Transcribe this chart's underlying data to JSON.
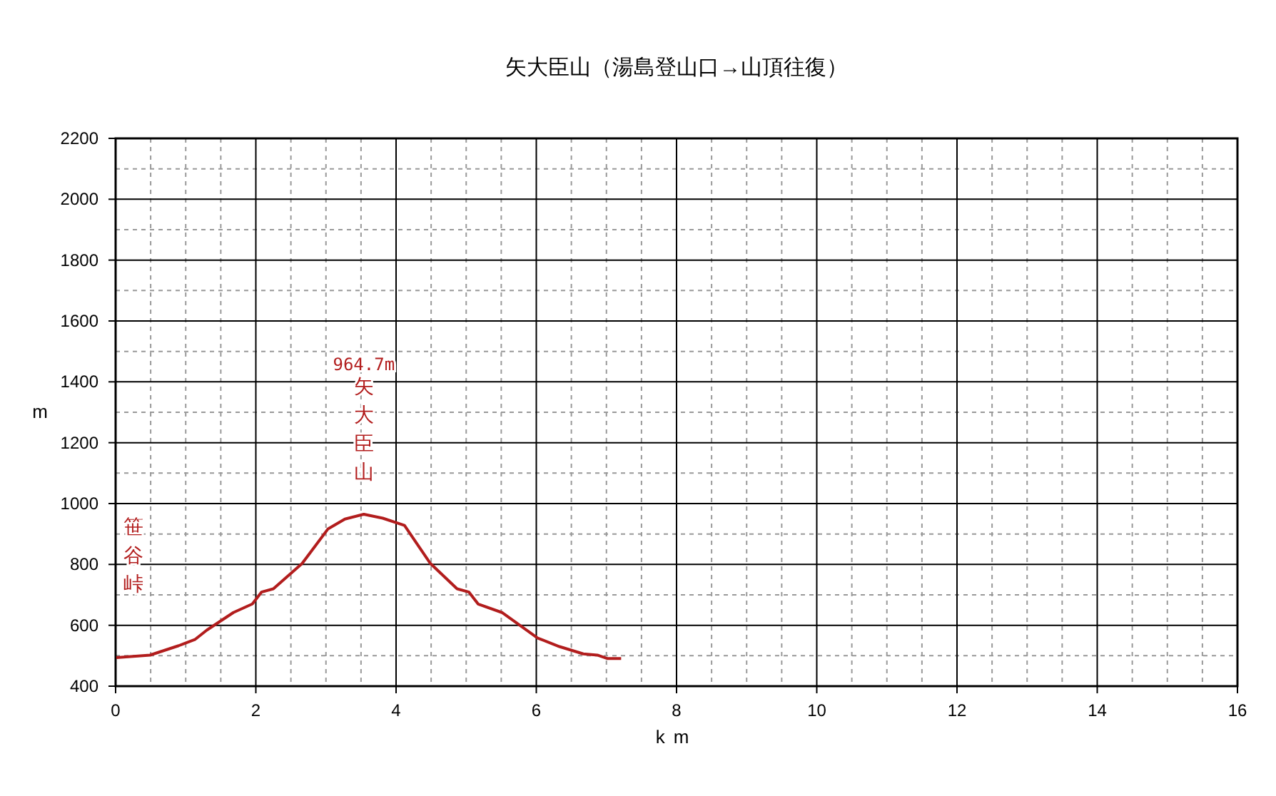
{
  "chart_data": {
    "type": "line",
    "title": "矢大臣山（湯島登山口→山頂往復）",
    "xlabel": "km",
    "ylabel": "m",
    "xlim": [
      0,
      16
    ],
    "xticks": [
      0,
      2,
      4,
      6,
      8,
      10,
      12,
      14,
      16
    ],
    "ylim": [
      400,
      2200
    ],
    "yticks": [
      400,
      600,
      800,
      1000,
      1200,
      1400,
      1600,
      1800,
      2000,
      2200
    ],
    "grid": true,
    "marker": "none",
    "line_style": "solid",
    "series": [
      {
        "color": "#b21d1d",
        "x": [
          0.01,
          0.49,
          0.9,
          1.13,
          1.3,
          1.68,
          1.95,
          2.08,
          2.25,
          2.66,
          3.03,
          3.27,
          3.54,
          3.81,
          4.12,
          4.49,
          4.87,
          5.04,
          5.17,
          5.51,
          6.02,
          6.33,
          6.67,
          6.87,
          7.01,
          7.21
        ],
        "values": [
          494,
          502,
          533,
          553,
          584,
          642,
          670,
          709,
          720,
          803,
          917,
          949,
          964.7,
          952,
          928,
          803,
          720,
          709,
          670,
          642,
          558,
          530,
          506,
          502,
          491,
          491
        ]
      }
    ],
    "annotations": [
      "964.7m",
      "矢大臣山",
      "笹谷峠"
    ]
  }
}
